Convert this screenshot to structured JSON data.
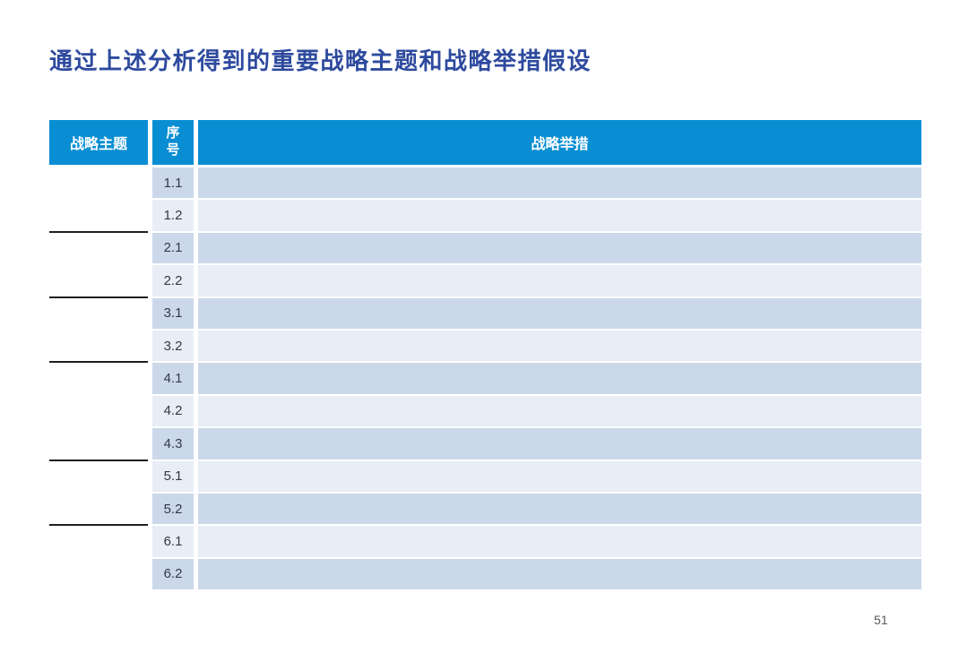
{
  "page": {
    "title": "通过上述分析得到的重要战略主题和战略举措假设",
    "page_number": "51"
  },
  "colors": {
    "title_text": "#2e4a9e",
    "header_bg": "#0a8ed3",
    "header_text": "#ffffff",
    "row_dark": "#cbd8e9",
    "row_light": "#e8edf6",
    "theme_divider": "#1f1f1f",
    "page_number_text": "#595959"
  },
  "table": {
    "columns": [
      {
        "key": "theme",
        "label": "战略主题"
      },
      {
        "key": "no",
        "label": "序号"
      },
      {
        "key": "initiative",
        "label": "战略举措"
      }
    ],
    "rows": [
      {
        "no": "1.1",
        "initiative": ""
      },
      {
        "no": "1.2",
        "initiative": ""
      },
      {
        "no": "2.1",
        "initiative": ""
      },
      {
        "no": "2.2",
        "initiative": ""
      },
      {
        "no": "3.1",
        "initiative": ""
      },
      {
        "no": "3.2",
        "initiative": ""
      },
      {
        "no": "4.1",
        "initiative": ""
      },
      {
        "no": "4.2",
        "initiative": ""
      },
      {
        "no": "4.3",
        "initiative": ""
      },
      {
        "no": "5.1",
        "initiative": ""
      },
      {
        "no": "5.2",
        "initiative": ""
      },
      {
        "no": "6.1",
        "initiative": ""
      },
      {
        "no": "6.2",
        "initiative": ""
      }
    ],
    "theme_groups": [
      {
        "label": "",
        "row_span": 2
      },
      {
        "label": "",
        "row_span": 2
      },
      {
        "label": "",
        "row_span": 2
      },
      {
        "label": "",
        "row_span": 3
      },
      {
        "label": "",
        "row_span": 2
      },
      {
        "label": "",
        "row_span": 2
      }
    ]
  }
}
